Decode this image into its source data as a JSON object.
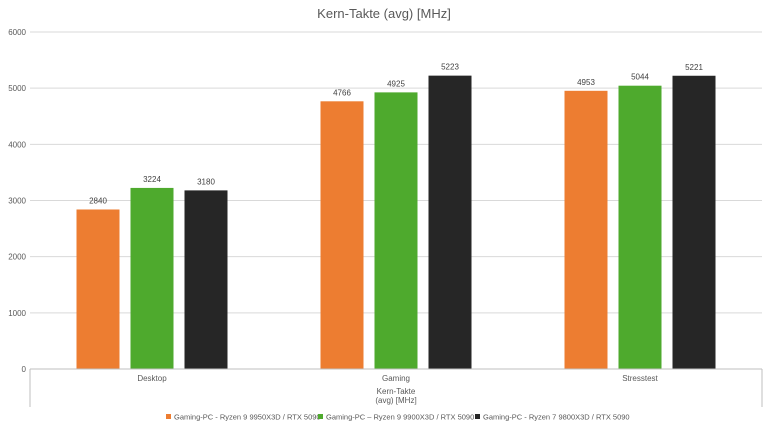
{
  "chart_data": {
    "type": "bar",
    "title": "Kern-Takte (avg) [MHz]",
    "xlabel": "Kern-Takte (avg) [MHz]",
    "xlabel_lines": [
      "Kern-Takte",
      "(avg) [MHz]"
    ],
    "ylabel": "",
    "categories": [
      "Desktop",
      "Gaming",
      "Stresstest"
    ],
    "ylim": [
      0,
      6000
    ],
    "yticks": [
      0,
      1000,
      2000,
      3000,
      4000,
      5000,
      6000
    ],
    "grid": true,
    "legend_position": "bottom",
    "data_labels": true,
    "series": [
      {
        "name": "Gaming-PC - Ryzen 9 9950X3D / RTX 5090",
        "color": "#ED7D31",
        "values": [
          2840,
          4766,
          4953
        ]
      },
      {
        "name": "Gaming-PC – Ryzen 9 9900X3D / RTX 5090",
        "color": "#4EAA2D",
        "values": [
          3224,
          4925,
          5044
        ]
      },
      {
        "name": "Gaming-PC - Ryzen 7 9800X3D / RTX 5090",
        "color": "#262626",
        "values": [
          3180,
          5223,
          5221
        ]
      }
    ]
  }
}
